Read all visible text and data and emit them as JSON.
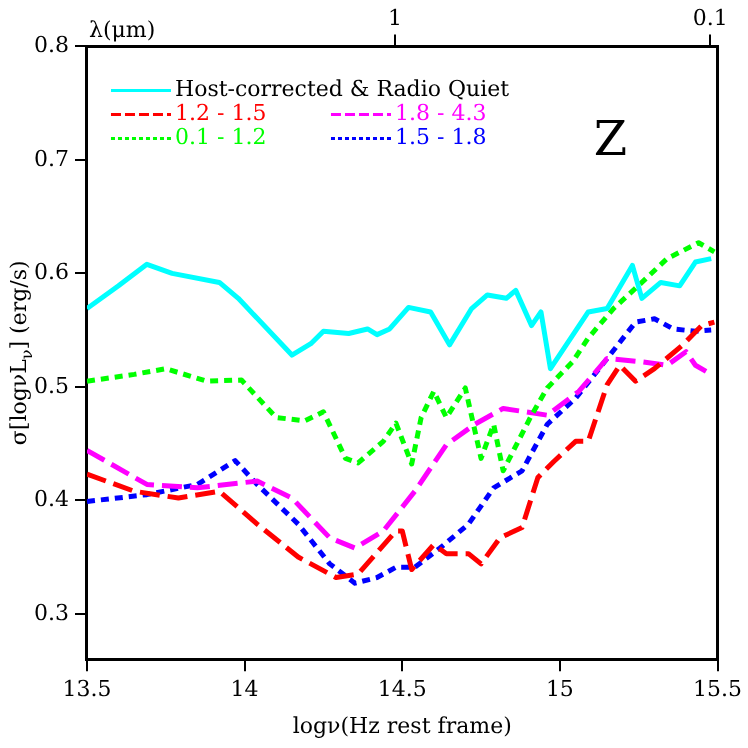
{
  "chart_data": {
    "type": "line",
    "xlabel": "logν(Hz rest frame)",
    "ylabel": "σ[logνL$_{ν}$] (erg/s)",
    "x2label": "λ(μm)",
    "annotations": [
      "Z"
    ],
    "xlim": [
      13.5,
      15.5
    ],
    "xticks": [
      13.5,
      14,
      14.5,
      15,
      15.5
    ],
    "ylim": [
      0.26,
      0.8
    ],
    "yticks": [
      0.3,
      0.4,
      0.5,
      0.6,
      0.7,
      0.8
    ],
    "x2lim": [
      9.49,
      0.0949
    ],
    "x2ticks": [
      1,
      0.1
    ],
    "log": "x2",
    "legend": "top left",
    "marker": "none",
    "grid": false,
    "series": [
      {
        "name": "Host-corrected & Radio Quiet",
        "color": "#00ffff",
        "line_style": "solid",
        "x": [
          13.5,
          13.6,
          13.69,
          13.77,
          13.92,
          13.98,
          14.15,
          14.21,
          14.25,
          14.33,
          14.39,
          14.42,
          14.46,
          14.52,
          14.59,
          14.65,
          14.72,
          14.77,
          14.83,
          14.86,
          14.91,
          14.94,
          14.97,
          15.09,
          15.15,
          15.23,
          15.26,
          15.32,
          15.38,
          15.43,
          15.48
        ],
        "values": [
          0.569,
          0.589,
          0.608,
          0.6,
          0.592,
          0.578,
          0.528,
          0.538,
          0.549,
          0.547,
          0.551,
          0.546,
          0.551,
          0.57,
          0.566,
          0.537,
          0.569,
          0.581,
          0.578,
          0.585,
          0.554,
          0.566,
          0.516,
          0.566,
          0.569,
          0.607,
          0.578,
          0.592,
          0.589,
          0.61,
          0.613
        ]
      },
      {
        "name": "1.2 - 1.5",
        "color": "#ff0000",
        "line_style": "dashed",
        "x": [
          13.5,
          13.65,
          13.79,
          13.92,
          14.04,
          14.17,
          14.29,
          14.36,
          14.48,
          14.5,
          14.53,
          14.6,
          14.64,
          14.71,
          14.75,
          14.81,
          14.88,
          14.93,
          14.98,
          15.05,
          15.09,
          15.15,
          15.19,
          15.24,
          15.3,
          15.39,
          15.45,
          15.49
        ],
        "values": [
          0.423,
          0.408,
          0.402,
          0.408,
          0.379,
          0.35,
          0.332,
          0.335,
          0.373,
          0.373,
          0.339,
          0.361,
          0.353,
          0.353,
          0.344,
          0.367,
          0.376,
          0.42,
          0.434,
          0.452,
          0.452,
          0.502,
          0.519,
          0.505,
          0.516,
          0.537,
          0.554,
          0.557
        ]
      },
      {
        "name": "0.1 - 1.2",
        "color": "#00ff00",
        "line_style": "dotted",
        "x": [
          13.5,
          13.65,
          13.75,
          13.88,
          13.99,
          14.1,
          14.19,
          14.25,
          14.32,
          14.36,
          14.44,
          14.48,
          14.53,
          14.56,
          14.6,
          14.64,
          14.7,
          14.75,
          14.79,
          14.82,
          14.91,
          14.96,
          15.04,
          15.09,
          15.17,
          15.26,
          15.34,
          15.44,
          15.49
        ],
        "values": [
          0.505,
          0.511,
          0.516,
          0.505,
          0.506,
          0.473,
          0.47,
          0.478,
          0.437,
          0.433,
          0.452,
          0.468,
          0.432,
          0.473,
          0.496,
          0.473,
          0.499,
          0.437,
          0.467,
          0.426,
          0.475,
          0.499,
          0.522,
          0.543,
          0.569,
          0.592,
          0.613,
          0.627,
          0.619
        ]
      },
      {
        "name": "1.8 - 4.3",
        "color": "#ff00ff",
        "line_style": "dashed",
        "x": [
          13.5,
          13.69,
          13.85,
          14.04,
          14.15,
          14.27,
          14.35,
          14.44,
          14.54,
          14.64,
          14.73,
          14.82,
          14.96,
          15.06,
          15.15,
          15.26,
          15.34,
          15.4,
          15.43,
          15.48
        ],
        "values": [
          0.444,
          0.414,
          0.411,
          0.417,
          0.402,
          0.367,
          0.358,
          0.373,
          0.408,
          0.449,
          0.467,
          0.481,
          0.475,
          0.496,
          0.525,
          0.522,
          0.519,
          0.531,
          0.519,
          0.511
        ]
      },
      {
        "name": "1.5 - 1.8",
        "color": "#0000ff",
        "line_style": "dotted",
        "x": [
          13.5,
          13.69,
          13.85,
          13.97,
          14.04,
          14.17,
          14.27,
          14.35,
          14.42,
          14.48,
          14.54,
          14.62,
          14.71,
          14.79,
          14.88,
          14.96,
          15.05,
          15.15,
          15.24,
          15.3,
          15.36,
          15.43,
          15.48
        ],
        "values": [
          0.399,
          0.405,
          0.414,
          0.435,
          0.414,
          0.379,
          0.344,
          0.327,
          0.332,
          0.341,
          0.341,
          0.358,
          0.379,
          0.411,
          0.426,
          0.467,
          0.49,
          0.525,
          0.557,
          0.56,
          0.551,
          0.549,
          0.55
        ]
      }
    ]
  }
}
